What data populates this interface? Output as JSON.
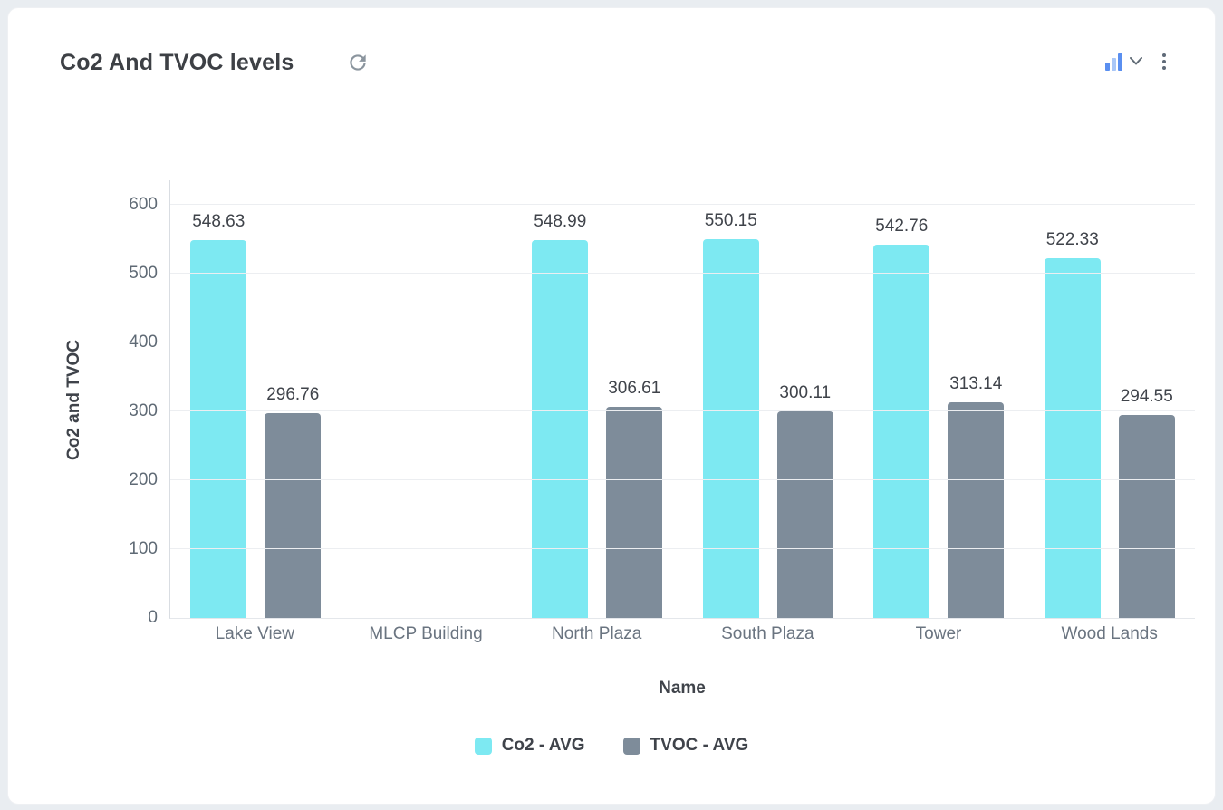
{
  "header": {
    "title": "Co2 And TVOC levels"
  },
  "chart_data": {
    "type": "bar",
    "title": "Co2 And TVOC levels",
    "categories": [
      "Lake View",
      "MLCP Building",
      "North Plaza",
      "South Plaza",
      "Tower",
      "Wood Lands"
    ],
    "series": [
      {
        "name": "Co2 - AVG",
        "color": "#7DE9F2",
        "values": [
          548.63,
          null,
          548.99,
          550.15,
          542.76,
          522.33
        ]
      },
      {
        "name": "TVOC - AVG",
        "color": "#7E8C9A",
        "values": [
          296.76,
          null,
          306.61,
          300.11,
          313.14,
          294.55
        ]
      }
    ],
    "xlabel": "Name",
    "ylabel": "Co2 and TVOC",
    "ylim": [
      0,
      600
    ],
    "yticks": [
      0,
      100,
      200,
      300,
      400,
      500,
      600
    ],
    "grid": true,
    "legend_position": "bottom",
    "value_labels": true
  },
  "colors": {
    "co2_bar": "#7DE9F2",
    "tvoc_bar": "#7E8C9A",
    "grid": "#eceef1",
    "tick_text": "#5f6a75"
  }
}
